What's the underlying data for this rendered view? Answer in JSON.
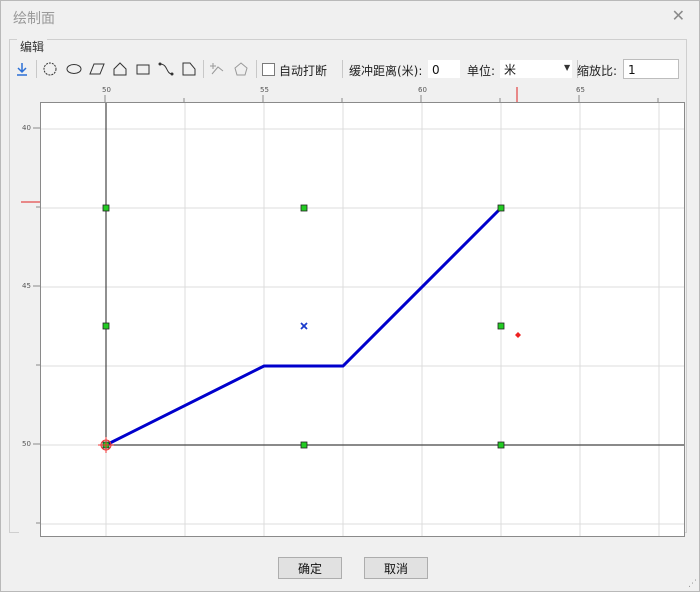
{
  "window": {
    "title": "绘制面"
  },
  "group": {
    "label": "编辑"
  },
  "toolbar": {
    "auto_break_label": "自动打断",
    "buffer_label": "缓冲距离(米):",
    "buffer_value": "0",
    "unit_label": "单位:",
    "unit_value": "米",
    "scale_label": "缩放比:",
    "scale_value": "1"
  },
  "ruler": {
    "x_ticks": [
      "50",
      "55",
      "60",
      "65"
    ],
    "y_ticks": [
      "40",
      "45",
      "50"
    ]
  },
  "buttons": {
    "ok": "确定",
    "cancel": "取消"
  },
  "colors": {
    "line": "#0000cc",
    "handle": "#22cc22",
    "marker": "#ee3333",
    "grid": "#d9d9d9"
  }
}
